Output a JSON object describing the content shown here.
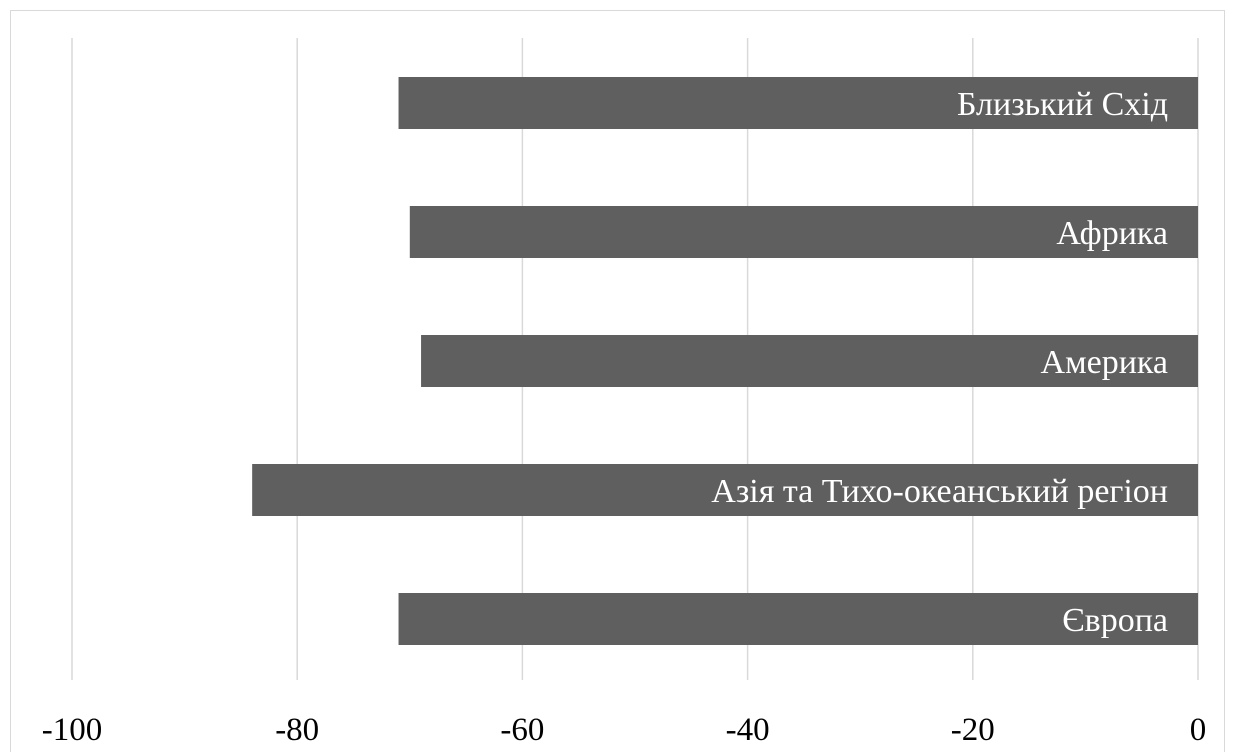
{
  "chart_data": {
    "type": "bar",
    "orientation": "horizontal",
    "title": "",
    "xlabel": "",
    "ylabel": "",
    "xlim": [
      -100,
      0
    ],
    "xticks": [
      -100,
      -80,
      -60,
      -40,
      -20,
      0
    ],
    "xtick_labels": [
      "-100",
      "-80",
      "-60",
      "-40",
      "-20",
      "0"
    ],
    "categories": [
      "Близький Схід",
      "Африка",
      "Америка",
      "Азія та Тихо-океанський регіон",
      "Європа"
    ],
    "values": [
      -71,
      -70,
      -69,
      -84,
      -71
    ],
    "grid": "vertical",
    "legend": "none",
    "colors": {
      "bar": "#5f5f5f",
      "grid": "#d9d9d9",
      "bar_text": "#ffffff",
      "axis_text": "#000000"
    }
  }
}
